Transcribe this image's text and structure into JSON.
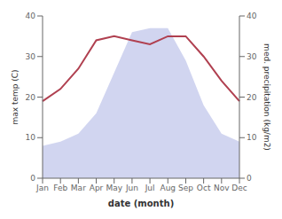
{
  "chart_data": {
    "type": "line",
    "xlabel": "date (month)",
    "ylabel": "max temp (C)",
    "y2label": "med. precipitation (kg/m2)",
    "categories": [
      "Jan",
      "Feb",
      "Mar",
      "Apr",
      "May",
      "Jun",
      "Jul",
      "Aug",
      "Sep",
      "Oct",
      "Nov",
      "Dec"
    ],
    "series": [
      {
        "type": "area",
        "axis": "y2",
        "color": "#b8bfe8",
        "values": [
          8,
          9,
          11,
          16,
          26,
          36,
          37,
          37,
          29,
          18,
          11,
          9
        ]
      },
      {
        "type": "line",
        "color": "#b04050",
        "values": [
          19,
          22,
          27,
          34,
          35,
          34,
          33,
          35,
          35,
          30,
          24,
          19
        ]
      }
    ],
    "ylim": [
      0,
      40
    ],
    "yticks": [
      0,
      10,
      20,
      30,
      40
    ],
    "y2lim": [
      0,
      40
    ],
    "y2ticks": [
      0,
      10,
      20,
      30,
      40
    ],
    "grid": false
  }
}
